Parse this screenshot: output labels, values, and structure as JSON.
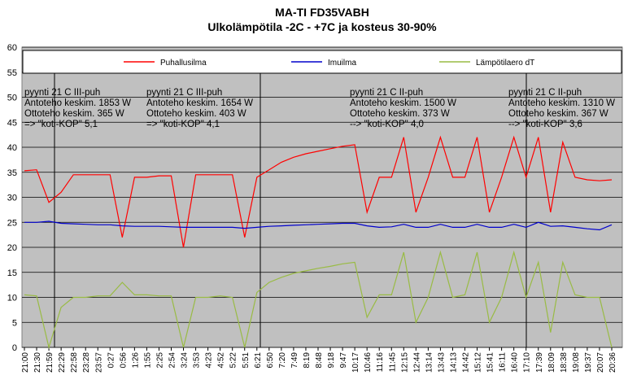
{
  "chart_data": {
    "type": "line",
    "title": "MA-TI FD35VABH",
    "subtitle": "Ulkolämpötila -2C - +7C ja kosteus 30-90%",
    "categories": [
      "21:00",
      "21:30",
      "21:59",
      "22:29",
      "22:58",
      "23:28",
      "23:57",
      "0:27",
      "0:56",
      "1:26",
      "1:55",
      "2:25",
      "2:54",
      "3:24",
      "3:53",
      "4:23",
      "4:52",
      "5:22",
      "5:51",
      "6:21",
      "6:50",
      "7:20",
      "7:49",
      "8:19",
      "8:48",
      "9:18",
      "9:47",
      "10:17",
      "10:46",
      "11:16",
      "11:45",
      "12:15",
      "12:44",
      "13:14",
      "13:43",
      "14:13",
      "14:42",
      "15:12",
      "15:41",
      "16:11",
      "16:40",
      "17:10",
      "17:39",
      "18:09",
      "18:38",
      "19:08",
      "19:37",
      "20:07",
      "20:36"
    ],
    "series": [
      {
        "name": "Puhallusilma",
        "color": "#ff0000",
        "values": [
          35.3,
          35.5,
          29,
          31,
          34.5,
          34.5,
          34.5,
          34.5,
          22,
          34,
          34,
          34.3,
          34.3,
          20,
          34.5,
          34.5,
          34.5,
          34.5,
          22,
          34,
          35.5,
          37,
          38,
          38.7,
          39.2,
          39.7,
          40.2,
          40.5,
          27,
          34,
          34,
          42,
          27,
          34,
          42,
          34,
          34,
          42,
          27,
          34,
          42,
          34,
          42,
          27,
          41,
          34,
          33.5,
          33.3,
          33.5
        ]
      },
      {
        "name": "Imuilma",
        "color": "#0000cc",
        "values": [
          25,
          25,
          25.2,
          24.8,
          24.7,
          24.6,
          24.5,
          24.5,
          24.3,
          24.2,
          24.2,
          24.2,
          24.1,
          24,
          24,
          24,
          24,
          24,
          23.8,
          24,
          24.2,
          24.3,
          24.4,
          24.5,
          24.6,
          24.7,
          24.8,
          24.8,
          24.3,
          24,
          24.1,
          24.6,
          24,
          24,
          24.6,
          24,
          24,
          24.6,
          24,
          24,
          24.6,
          24,
          25,
          24.2,
          24.3,
          24,
          23.7,
          23.5,
          24.5
        ]
      },
      {
        "name": "Lämpötilaero dT",
        "color": "#99bb44",
        "values": [
          10.5,
          10.3,
          0,
          8,
          10,
          10,
          10.3,
          10.3,
          13,
          10.5,
          10.5,
          10.3,
          10.3,
          0,
          10,
          10,
          10.3,
          10,
          0,
          11,
          13,
          14,
          14.8,
          15.3,
          15.8,
          16.2,
          16.7,
          17,
          6,
          10.5,
          10.5,
          19,
          5,
          10,
          19,
          10,
          10.5,
          19,
          5,
          10,
          19,
          10,
          17,
          3,
          17,
          10.5,
          10,
          10,
          0
        ]
      }
    ],
    "ylim": [
      0,
      60
    ],
    "yticks": [
      0,
      5,
      10,
      15,
      20,
      25,
      30,
      35,
      40,
      45,
      50,
      55,
      60
    ],
    "grid": true,
    "annotations": [
      [
        "pyynti 21 C III-puh",
        "Antoteho keskim. 1853 W",
        "Ottoteho keskim. 365 W",
        "=> \"koti-KOP\" 5,1"
      ],
      [
        "pyynti 21 C III-puh",
        "Antoteho keskim. 1654 W",
        "Ottoteho keskim. 403 W",
        "=> \"koti-KOP\" 4,1"
      ],
      [
        "pyynti 21 C II-puh",
        "Antoteho keskim. 1500 W",
        "Ottoteho keskim. 373 W",
        "--> \"koti-KOP\" 4,0"
      ],
      [
        "pyynti 21 C II-puh",
        "Antoteho keskim. 1310 W",
        "Ottoteho keskim. 367 W",
        "--> \"koti-KOP\" 3,6"
      ]
    ]
  }
}
